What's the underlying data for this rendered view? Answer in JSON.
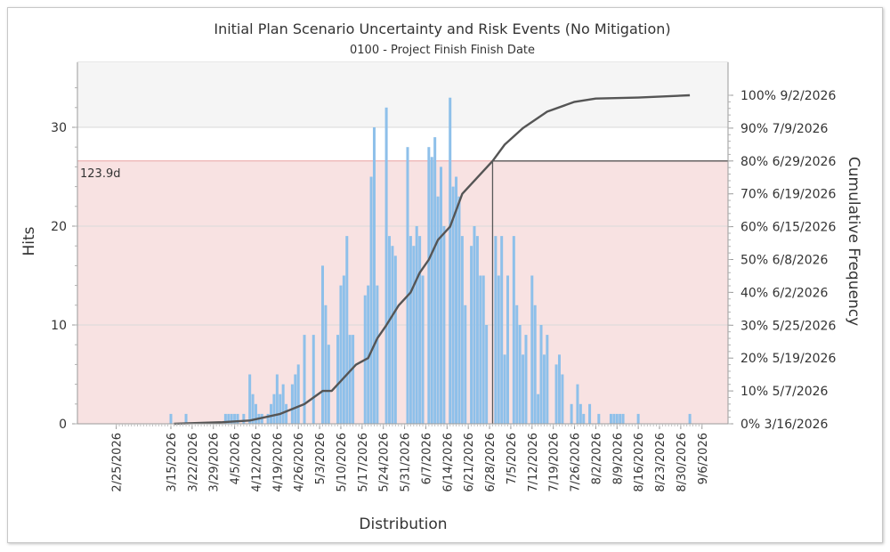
{
  "chart_data": {
    "type": "bar",
    "title": "Initial Plan Scenario Uncertainty and Risk Events (No Mitigation)",
    "subtitle": "0100 - Project Finish Finish Date",
    "xlabel": "Distribution",
    "ylabel": "Hits",
    "y2label": "Cumulative Frequency",
    "ylim": [
      0,
      36
    ],
    "y_ticks": [
      0,
      10,
      20,
      30
    ],
    "x_tick_labels": [
      "2/25/2026",
      "3/15/2026",
      "3/22/2026",
      "3/29/2026",
      "4/5/2026",
      "4/12/2026",
      "4/19/2026",
      "4/26/2026",
      "5/3/2026",
      "5/10/2026",
      "5/17/2026",
      "5/24/2026",
      "5/31/2026",
      "6/7/2026",
      "6/14/2026",
      "6/21/2026",
      "6/28/2026",
      "7/5/2026",
      "7/12/2026",
      "7/19/2026",
      "7/26/2026",
      "8/2/2026",
      "8/9/2026",
      "8/16/2026",
      "8/23/2026",
      "8/30/2026",
      "9/6/2026"
    ],
    "cumulative_labels": [
      "0% 3/16/2026",
      "10% 5/7/2026",
      "20% 5/19/2026",
      "30% 5/25/2026",
      "40% 6/2/2026",
      "50% 6/8/2026",
      "60% 6/15/2026",
      "70% 6/19/2026",
      "80% 6/29/2026",
      "90% 7/9/2026",
      "100% 9/2/2026"
    ],
    "highlight": {
      "label": "123.9d",
      "percentile": 80,
      "date": "6/29/2026"
    },
    "hits": [
      {
        "d": "3/15/2026",
        "v": 1
      },
      {
        "d": "3/20/2026",
        "v": 1
      },
      {
        "d": "4/2/2026",
        "v": 1
      },
      {
        "d": "4/3/2026",
        "v": 1
      },
      {
        "d": "4/4/2026",
        "v": 1
      },
      {
        "d": "4/5/2026",
        "v": 1
      },
      {
        "d": "4/6/2026",
        "v": 1
      },
      {
        "d": "4/8/2026",
        "v": 1
      },
      {
        "d": "4/10/2026",
        "v": 5
      },
      {
        "d": "4/11/2026",
        "v": 3
      },
      {
        "d": "4/12/2026",
        "v": 2
      },
      {
        "d": "4/13/2026",
        "v": 1
      },
      {
        "d": "4/14/2026",
        "v": 1
      },
      {
        "d": "4/16/2026",
        "v": 1
      },
      {
        "d": "4/17/2026",
        "v": 2
      },
      {
        "d": "4/18/2026",
        "v": 3
      },
      {
        "d": "4/19/2026",
        "v": 5
      },
      {
        "d": "4/20/2026",
        "v": 3
      },
      {
        "d": "4/21/2026",
        "v": 4
      },
      {
        "d": "4/22/2026",
        "v": 2
      },
      {
        "d": "4/24/2026",
        "v": 4
      },
      {
        "d": "4/25/2026",
        "v": 5
      },
      {
        "d": "4/26/2026",
        "v": 6
      },
      {
        "d": "4/28/2026",
        "v": 9
      },
      {
        "d": "5/1/2026",
        "v": 9
      },
      {
        "d": "5/4/2026",
        "v": 16
      },
      {
        "d": "5/5/2026",
        "v": 12
      },
      {
        "d": "5/6/2026",
        "v": 8
      },
      {
        "d": "5/9/2026",
        "v": 9
      },
      {
        "d": "5/10/2026",
        "v": 14
      },
      {
        "d": "5/11/2026",
        "v": 15
      },
      {
        "d": "5/12/2026",
        "v": 19
      },
      {
        "d": "5/13/2026",
        "v": 9
      },
      {
        "d": "5/14/2026",
        "v": 9
      },
      {
        "d": "5/18/2026",
        "v": 13
      },
      {
        "d": "5/19/2026",
        "v": 14
      },
      {
        "d": "5/20/2026",
        "v": 25
      },
      {
        "d": "5/21/2026",
        "v": 30
      },
      {
        "d": "5/22/2026",
        "v": 14
      },
      {
        "d": "5/25/2026",
        "v": 32
      },
      {
        "d": "5/26/2026",
        "v": 19
      },
      {
        "d": "5/27/2026",
        "v": 18
      },
      {
        "d": "5/28/2026",
        "v": 17
      },
      {
        "d": "6/1/2026",
        "v": 28
      },
      {
        "d": "6/2/2026",
        "v": 19
      },
      {
        "d": "6/3/2026",
        "v": 18
      },
      {
        "d": "6/4/2026",
        "v": 20
      },
      {
        "d": "6/5/2026",
        "v": 19
      },
      {
        "d": "6/6/2026",
        "v": 15
      },
      {
        "d": "6/8/2026",
        "v": 28
      },
      {
        "d": "6/9/2026",
        "v": 27
      },
      {
        "d": "6/10/2026",
        "v": 29
      },
      {
        "d": "6/11/2026",
        "v": 23
      },
      {
        "d": "6/12/2026",
        "v": 26
      },
      {
        "d": "6/13/2026",
        "v": 20
      },
      {
        "d": "6/15/2026",
        "v": 33
      },
      {
        "d": "6/16/2026",
        "v": 24
      },
      {
        "d": "6/17/2026",
        "v": 25
      },
      {
        "d": "6/18/2026",
        "v": 23
      },
      {
        "d": "6/19/2026",
        "v": 19
      },
      {
        "d": "6/20/2026",
        "v": 12
      },
      {
        "d": "6/22/2026",
        "v": 18
      },
      {
        "d": "6/23/2026",
        "v": 20
      },
      {
        "d": "6/24/2026",
        "v": 19
      },
      {
        "d": "6/25/2026",
        "v": 15
      },
      {
        "d": "6/26/2026",
        "v": 15
      },
      {
        "d": "6/27/2026",
        "v": 10
      },
      {
        "d": "6/30/2026",
        "v": 19
      },
      {
        "d": "7/1/2026",
        "v": 15
      },
      {
        "d": "7/2/2026",
        "v": 19
      },
      {
        "d": "7/3/2026",
        "v": 7
      },
      {
        "d": "7/4/2026",
        "v": 15
      },
      {
        "d": "7/6/2026",
        "v": 19
      },
      {
        "d": "7/7/2026",
        "v": 12
      },
      {
        "d": "7/8/2026",
        "v": 10
      },
      {
        "d": "7/9/2026",
        "v": 7
      },
      {
        "d": "7/10/2026",
        "v": 9
      },
      {
        "d": "7/12/2026",
        "v": 15
      },
      {
        "d": "7/13/2026",
        "v": 12
      },
      {
        "d": "7/14/2026",
        "v": 3
      },
      {
        "d": "7/15/2026",
        "v": 10
      },
      {
        "d": "7/16/2026",
        "v": 7
      },
      {
        "d": "7/17/2026",
        "v": 9
      },
      {
        "d": "7/20/2026",
        "v": 6
      },
      {
        "d": "7/21/2026",
        "v": 7
      },
      {
        "d": "7/22/2026",
        "v": 5
      },
      {
        "d": "7/25/2026",
        "v": 2
      },
      {
        "d": "7/27/2026",
        "v": 4
      },
      {
        "d": "7/28/2026",
        "v": 2
      },
      {
        "d": "7/29/2026",
        "v": 1
      },
      {
        "d": "7/31/2026",
        "v": 2
      },
      {
        "d": "8/3/2026",
        "v": 1
      },
      {
        "d": "8/7/2026",
        "v": 1
      },
      {
        "d": "8/8/2026",
        "v": 1
      },
      {
        "d": "8/9/2026",
        "v": 1
      },
      {
        "d": "8/10/2026",
        "v": 1
      },
      {
        "d": "8/11/2026",
        "v": 1
      },
      {
        "d": "8/16/2026",
        "v": 1
      },
      {
        "d": "9/2/2026",
        "v": 1
      }
    ],
    "cumulative_curve": [
      {
        "d": "3/16/2026",
        "p": 0
      },
      {
        "d": "4/1/2026",
        "p": 0.5
      },
      {
        "d": "4/10/2026",
        "p": 1
      },
      {
        "d": "4/20/2026",
        "p": 3
      },
      {
        "d": "4/28/2026",
        "p": 6
      },
      {
        "d": "5/4/2026",
        "p": 10
      },
      {
        "d": "5/7/2026",
        "p": 10
      },
      {
        "d": "5/12/2026",
        "p": 15
      },
      {
        "d": "5/15/2026",
        "p": 18
      },
      {
        "d": "5/19/2026",
        "p": 20
      },
      {
        "d": "5/22/2026",
        "p": 26
      },
      {
        "d": "5/25/2026",
        "p": 30
      },
      {
        "d": "5/29/2026",
        "p": 36
      },
      {
        "d": "6/2/2026",
        "p": 40
      },
      {
        "d": "6/5/2026",
        "p": 46
      },
      {
        "d": "6/8/2026",
        "p": 50
      },
      {
        "d": "6/11/2026",
        "p": 56
      },
      {
        "d": "6/15/2026",
        "p": 60
      },
      {
        "d": "6/19/2026",
        "p": 70
      },
      {
        "d": "6/24/2026",
        "p": 75
      },
      {
        "d": "6/29/2026",
        "p": 80
      },
      {
        "d": "7/3/2026",
        "p": 85
      },
      {
        "d": "7/9/2026",
        "p": 90
      },
      {
        "d": "7/17/2026",
        "p": 95
      },
      {
        "d": "7/26/2026",
        "p": 98
      },
      {
        "d": "8/2/2026",
        "p": 99
      },
      {
        "d": "8/16/2026",
        "p": 99.3
      },
      {
        "d": "9/2/2026",
        "p": 100
      }
    ],
    "grid": true,
    "colors": {
      "bar": "#8ec0ea",
      "curve": "#555555",
      "band": "#f8e2e2",
      "band_line": "#e8a0a0",
      "top_band": "#f5f5f5",
      "marker": "#5a5a5a",
      "highlight_text": "#e08080"
    }
  }
}
